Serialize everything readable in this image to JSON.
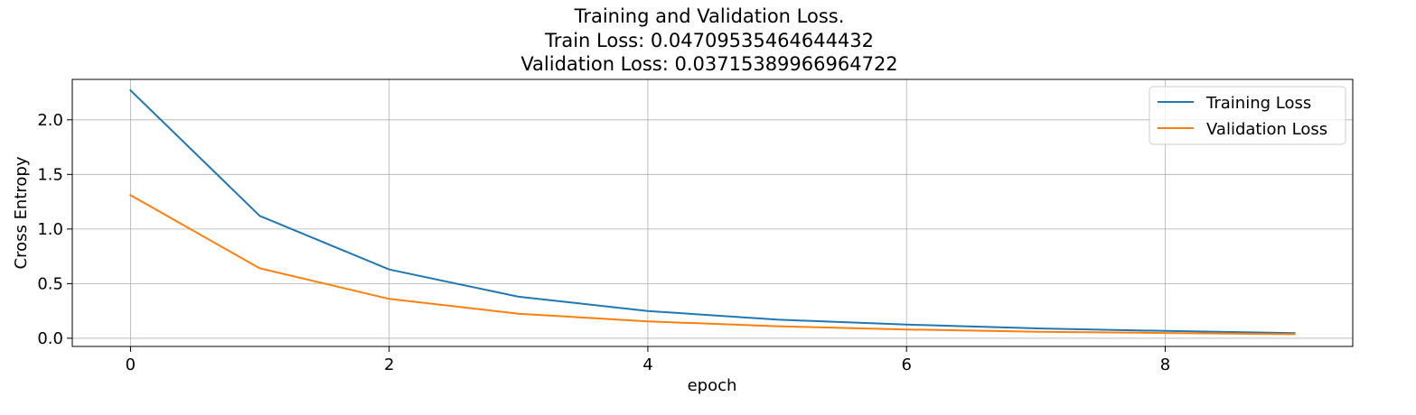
{
  "chart_data": {
    "type": "line",
    "title_lines": [
      "Training and Validation Loss.",
      "Train Loss: 0.04709535464644432",
      "Validation Loss: 0.03715389966964722"
    ],
    "xlabel": "epoch",
    "ylabel": "Cross Entropy",
    "x": [
      0,
      1,
      2,
      3,
      4,
      5,
      6,
      7,
      8,
      9
    ],
    "xlim": [
      -0.45,
      9.45
    ],
    "ylim": [
      -0.075,
      2.37
    ],
    "xticks": [
      0,
      2,
      4,
      6,
      8
    ],
    "yticks": [
      0.0,
      0.5,
      1.0,
      1.5,
      2.0
    ],
    "xtick_labels": [
      "0",
      "2",
      "4",
      "6",
      "8"
    ],
    "ytick_labels": [
      "0.0",
      "0.5",
      "1.0",
      "1.5",
      "2.0"
    ],
    "grid": true,
    "legend_position": "top-right",
    "series": [
      {
        "name": "Training Loss",
        "color": "#1f77b4",
        "values": [
          2.27,
          1.12,
          0.63,
          0.38,
          0.25,
          0.17,
          0.125,
          0.09,
          0.067,
          0.047
        ]
      },
      {
        "name": "Validation Loss",
        "color": "#ff7f0e",
        "values": [
          1.31,
          0.64,
          0.36,
          0.225,
          0.155,
          0.11,
          0.08,
          0.06,
          0.048,
          0.037
        ]
      }
    ]
  }
}
